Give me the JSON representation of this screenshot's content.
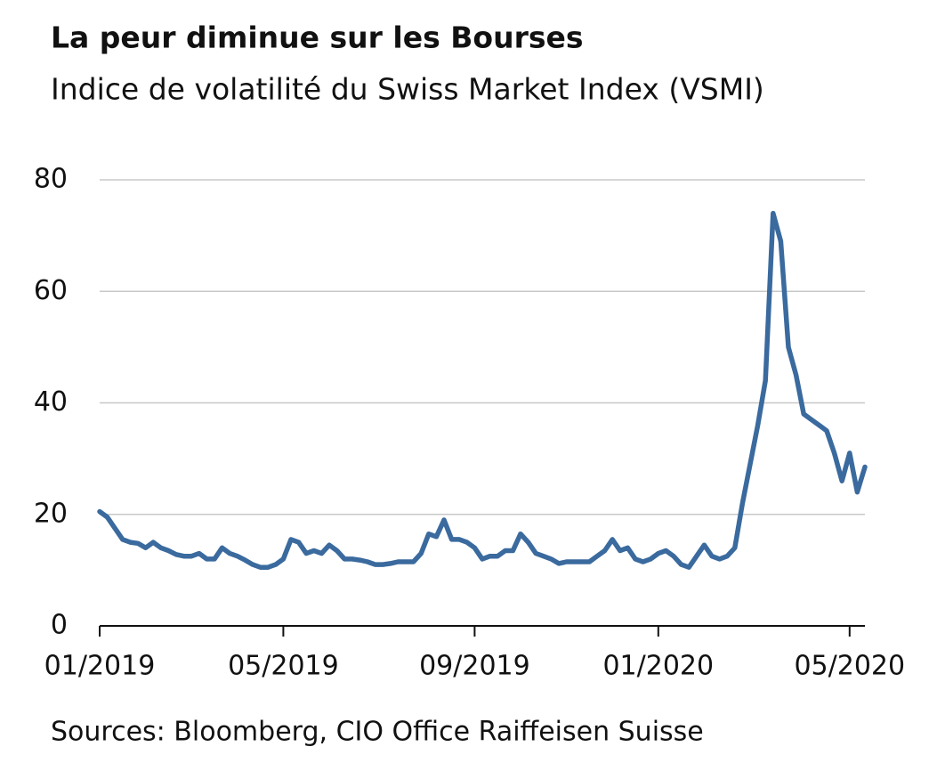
{
  "chart_data": {
    "type": "line",
    "title": "La peur diminue sur les Bourses",
    "subtitle": "Indice de volatilité du Swiss Market Index (VSMI)",
    "source": "Sources: Bloomberg, CIO Office Raiffeisen Suisse",
    "categories": [
      "01/2019",
      null,
      null,
      null,
      null,
      null,
      null,
      null,
      null,
      null,
      null,
      null,
      null,
      null,
      null,
      null,
      null,
      null,
      null,
      null,
      null,
      null,
      null,
      null,
      "05/2019",
      null,
      null,
      null,
      null,
      null,
      null,
      null,
      null,
      null,
      null,
      null,
      null,
      null,
      null,
      null,
      null,
      null,
      null,
      null,
      null,
      null,
      null,
      null,
      null,
      "09/2019",
      null,
      null,
      null,
      null,
      null,
      null,
      null,
      null,
      null,
      null,
      null,
      null,
      null,
      null,
      null,
      null,
      null,
      null,
      null,
      null,
      null,
      null,
      null,
      "01/2020",
      null,
      null,
      null,
      null,
      null,
      null,
      null,
      null,
      null,
      null,
      null,
      null,
      null,
      null,
      null,
      null,
      null,
      null,
      null,
      null,
      null,
      null,
      null,
      null,
      "05/2020",
      null,
      null
    ],
    "values": [
      20.5,
      19.5,
      17.5,
      15.5,
      15,
      14.8,
      14,
      15,
      14,
      13.5,
      12.8,
      12.5,
      12.5,
      13,
      12,
      12,
      14,
      13,
      12.5,
      11.8,
      11,
      10.5,
      10.5,
      11,
      12,
      15.5,
      15,
      13,
      13.5,
      13,
      14.5,
      13.5,
      12,
      12,
      11.8,
      11.5,
      11,
      11,
      11.2,
      11.5,
      11.5,
      11.5,
      13,
      16.5,
      16,
      19,
      15.5,
      15.5,
      15,
      14,
      12,
      12.5,
      12.5,
      13.5,
      13.5,
      16.5,
      15,
      13,
      12.5,
      12,
      11.2,
      11.5,
      11.5,
      11.5,
      11.5,
      12.5,
      13.5,
      15.5,
      13.5,
      14,
      12,
      11.5,
      12,
      13,
      13.5,
      12.5,
      11,
      10.5,
      12.5,
      14.5,
      12.5,
      12,
      12.5,
      14,
      22,
      29,
      36,
      44,
      74,
      69,
      50,
      45,
      38,
      37,
      36,
      35,
      31,
      26,
      31,
      24,
      28.5
    ],
    "color": "#3a6a9e",
    "ylim": [
      0,
      80
    ],
    "yticks": [
      0,
      20,
      40,
      60,
      80
    ],
    "grid": true
  }
}
